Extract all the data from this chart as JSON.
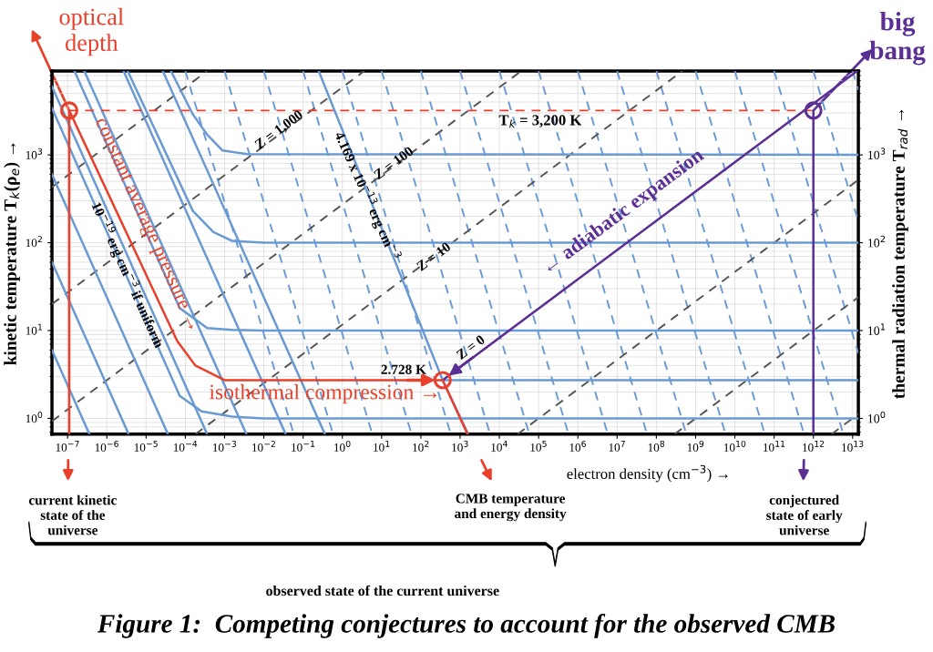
{
  "chart_data": {
    "type": "line",
    "title": "Figure 1:  Competing conjectures to account for the observed CMB",
    "xlabel": "electron density (cm$^{−3}$) →",
    "ylabel": "kinetic temperature T$_{k}$(ρ$_{e}$) →",
    "y2label": "thermal radiation temperature T$_{rad}$ →",
    "log": "xy",
    "grid": true,
    "xlim": [
      4e-08,
      14000000000000.0
    ],
    "ylim": [
      0.66,
      9000
    ],
    "xticks": [
      {
        "value": 1e-07,
        "label": "10$^{−7}$"
      },
      {
        "value": 1e-06,
        "label": "10$^{−6}$"
      },
      {
        "value": 1e-05,
        "label": "10$^{−5}$"
      },
      {
        "value": 0.0001,
        "label": "10$^{−4}$"
      },
      {
        "value": 0.001,
        "label": "10$^{−3}$"
      },
      {
        "value": 0.01,
        "label": "10$^{−2}$"
      },
      {
        "value": 0.1,
        "label": "10$^{−1}$"
      },
      {
        "value": 1,
        "label": "10$^{0}$"
      },
      {
        "value": 10,
        "label": "10$^{1}$"
      },
      {
        "value": 100,
        "label": "10$^{2}$"
      },
      {
        "value": 1000,
        "label": "10$^{3}$"
      },
      {
        "value": 10000.0,
        "label": "10$^{4}$"
      },
      {
        "value": 100000.0,
        "label": "10$^{5}$"
      },
      {
        "value": 1000000.0,
        "label": "10$^{6}$"
      },
      {
        "value": 10000000.0,
        "label": "10$^{7}$"
      },
      {
        "value": 100000000.0,
        "label": "10$^{8}$"
      },
      {
        "value": 1000000000.0,
        "label": "10$^{9}$"
      },
      {
        "value": 10000000000.0,
        "label": "10$^{10}$"
      },
      {
        "value": 100000000000.0,
        "label": "10$^{11}$"
      },
      {
        "value": 1000000000000.0,
        "label": "10$^{12}$"
      },
      {
        "value": 10000000000000.0,
        "label": "10$^{13}$"
      }
    ],
    "yticks": [
      {
        "value": 1,
        "label": "10$^{0}$"
      },
      {
        "value": 10,
        "label": "10$^{1}$"
      },
      {
        "value": 100,
        "label": "10$^{2}$"
      },
      {
        "value": 1000,
        "label": "10$^{3}$"
      }
    ],
    "series": [
      {
        "color": "#6a9ad4",
        "line_style": "dashed",
        "x": [
          0.0001,
          0.058
        ],
        "values": [
          9000,
          0.66
        ]
      },
      {
        "color": "#6a9ad4",
        "line_style": "dashed",
        "x": [
          0.001,
          0.58
        ],
        "values": [
          9000,
          0.66
        ]
      },
      {
        "color": "#6a9ad4",
        "line_style": "dashed",
        "x": [
          0.01,
          5.8
        ],
        "values": [
          9000,
          0.66
        ]
      },
      {
        "color": "#6a9ad4",
        "line_style": "dashed",
        "x": [
          0.1,
          58
        ],
        "values": [
          9000,
          0.66
        ]
      },
      {
        "color": "#6a9ad4",
        "line_style": "dashed",
        "x": [
          1,
          580
        ],
        "values": [
          9000,
          0.66
        ]
      },
      {
        "color": "#6a9ad4",
        "line_style": "dashed",
        "x": [
          10,
          5800
        ],
        "values": [
          9000,
          0.66
        ]
      },
      {
        "color": "#6a9ad4",
        "line_style": "dashed",
        "x": [
          100,
          58000.0
        ],
        "values": [
          9000,
          0.66
        ]
      },
      {
        "color": "#6a9ad4",
        "line_style": "dashed",
        "x": [
          1000,
          580000.0
        ],
        "values": [
          9000,
          0.66
        ]
      },
      {
        "color": "#6a9ad4",
        "line_style": "dashed",
        "x": [
          10000.0,
          5800000.0
        ],
        "values": [
          9000,
          0.66
        ]
      },
      {
        "color": "#6a9ad4",
        "line_style": "dashed",
        "x": [
          100000.0,
          58000000.0
        ],
        "values": [
          9000,
          0.66
        ]
      },
      {
        "color": "#6a9ad4",
        "line_style": "dashed",
        "x": [
          1000000.0,
          580000000.0
        ],
        "values": [
          9000,
          0.66
        ]
      },
      {
        "color": "#6a9ad4",
        "line_style": "dashed",
        "x": [
          10000000.0,
          5800000000.0
        ],
        "values": [
          9000,
          0.66
        ]
      },
      {
        "color": "#6a9ad4",
        "line_style": "dashed",
        "x": [
          100000000.0,
          58000000000.0
        ],
        "values": [
          9000,
          0.66
        ]
      },
      {
        "color": "#6a9ad4",
        "line_style": "dashed",
        "x": [
          1000000000.0,
          580000000000.0
        ],
        "values": [
          9000,
          0.66
        ]
      },
      {
        "color": "#6a9ad4",
        "line_style": "dashed",
        "x": [
          10000000000.0,
          5800000000000.0
        ],
        "values": [
          9000,
          0.66
        ]
      },
      {
        "color": "#6a9ad4",
        "line_style": "dashed",
        "x": [
          100000000000.0,
          14000000000000.0
        ],
        "values": [
          9000,
          5.5
        ]
      },
      {
        "color": "#6a9ad4",
        "line_style": "dashed",
        "x": [
          1000000000000.0,
          14000000000000.0
        ],
        "values": [
          9000,
          175
        ]
      },
      {
        "color": "#6a9ad4",
        "line_style": "dashed",
        "x": [
          10000000000000.0,
          14000000000000.0
        ],
        "values": [
          9000,
          5500
        ]
      },
      {
        "color": "#555555",
        "line_style": "dashed",
        "x": [
          4e-08,
          0.00036
        ],
        "values": [
          430,
          9000
        ]
      },
      {
        "color": "#555555",
        "line_style": "dashed",
        "x": [
          4e-08,
          3.6
        ],
        "values": [
          20,
          9000
        ]
      },
      {
        "color": "#555555",
        "line_style": "dashed",
        "x": [
          4e-08,
          36000.0
        ],
        "values": [
          0.93,
          9000
        ]
      },
      {
        "color": "#555555",
        "line_style": "dashed",
        "x": [
          0.00018,
          460000000.0
        ],
        "values": [
          0.66,
          9000
        ]
      },
      {
        "color": "#555555",
        "line_style": "dashed",
        "x": [
          29000.0,
          14000000000000.0
        ],
        "values": [
          0.66,
          520
        ]
      },
      {
        "color": "#555555",
        "line_style": "dashed",
        "x": [
          290000000.0,
          14000000000000.0
        ],
        "values": [
          0.66,
          24
        ]
      },
      {
        "color": "#555555",
        "line_style": "dashed",
        "x": [
          2900000000000.0,
          14000000000000.0
        ],
        "values": [
          0.66,
          1.12
        ]
      },
      {
        "color": "#6a9ad4",
        "x": [
          4e-08,
          3.6e-07
        ],
        "values": [
          6.0,
          0.66
        ]
      },
      {
        "color": "#6a9ad4",
        "x": [
          4e-08,
          3.6e-06
        ],
        "values": [
          60,
          0.66
        ]
      },
      {
        "color": "#6a9ad4",
        "x": [
          4e-08,
          3.6e-05
        ],
        "values": [
          600,
          0.66
        ]
      },
      {
        "color": "#6a9ad4",
        "x": [
          4e-08,
          0.00036
        ],
        "values": [
          6000,
          0.66
        ]
      },
      {
        "color": "#6a9ad4",
        "x": [
          2.67e-07,
          0.0036
        ],
        "values": [
          9000,
          0.66
        ]
      },
      {
        "color": "#6a9ad4",
        "x": [
          2.67e-06,
          0.036
        ],
        "values": [
          9000,
          0.66
        ]
      },
      {
        "color": "#6a9ad4",
        "x": [
          2.67e-05,
          0.36
        ],
        "values": [
          9000,
          0.66
        ]
      },
      {
        "color": "#6a9ad4",
        "x": [
          0.25,
          360,
          1600
        ],
        "values": [
          9000,
          2.728,
          0.66
        ]
      },
      {
        "color": "#6a9ad4",
        "x": [
          4.3e-05,
          0.000155,
          0.00036,
          0.00089,
          0.0038,
          14000000000000.0
        ],
        "values": [
          9000,
          2900,
          1700,
          1120,
          1020,
          1000
        ]
      },
      {
        "color": "#6a9ad4",
        "x": [
          3.4e-06,
          0.000155,
          0.00052,
          0.00155,
          0.01,
          14000000000000.0
        ],
        "values": [
          9000,
          230,
          132,
          105,
          100,
          100
        ]
      },
      {
        "color": "#6a9ad4",
        "x": [
          1.5e-07,
          7.2e-05,
          0.00036,
          0.00155,
          0.01,
          14000000000000.0
        ],
        "values": [
          9000,
          18,
          10.7,
          10.2,
          10,
          10
        ]
      },
      {
        "color": "#6a9ad4",
        "x": [
          360,
          14000000000000.0
        ],
        "values": [
          2.728,
          2.728
        ]
      },
      {
        "color": "#6a9ad4",
        "x": [
          4e-08,
          7.2e-05,
          0.00026,
          0.00155,
          0.01,
          14000000000000.0
        ],
        "values": [
          3400,
          1.8,
          1.2,
          1.05,
          1,
          1
        ]
      },
      {
        "color": "#e8402a",
        "x": [
          1.1e-07,
          6.2e-05,
          0.00018,
          0.00076,
          0.001,
          360
        ],
        "values": [
          3200,
          7.6,
          4.0,
          2.9,
          2.728,
          2.728
        ]
      },
      {
        "color": "#e8402a",
        "line_style": "dashed",
        "x": [
          1.1e-07,
          1000000000000.0
        ],
        "values": [
          3200,
          3200
        ]
      },
      {
        "color": "#5b2f94",
        "x": [
          360,
          13000000000000.0
        ],
        "values": [
          2.728,
          9000
        ]
      },
      {
        "color": "#e8402a",
        "x": [
          1.1e-07,
          1.1e-07
        ],
        "values": [
          3200,
          0.66
        ]
      },
      {
        "color": "#e8402a",
        "x": [
          360,
          1550
        ],
        "values": [
          2.728,
          0.66
        ]
      },
      {
        "color": "#5b2f94",
        "x": [
          1000000000000.0,
          1000000000000.0
        ],
        "values": [
          3200,
          0.66
        ]
      },
      {
        "type": "scatter",
        "marker": "circle",
        "color": "#e8402a",
        "x": [
          1.1e-07
        ],
        "values": [
          3200
        ]
      },
      {
        "type": "scatter",
        "marker": "circle",
        "color": "#e8402a",
        "x": [
          360
        ],
        "values": [
          2.728
        ]
      },
      {
        "type": "scatter",
        "marker": "circle",
        "color": "#5b2f94",
        "x": [
          1000000000000.0
        ],
        "values": [
          3200
        ]
      }
    ],
    "annotations": [
      "optical\ndepth",
      "big\nbang",
      "constant average pressure →",
      {
        "text": "isothermal compression →",
        "x": 0.36,
        "y": 1.9
      },
      {
        "text": "← adiabatic expansion",
        "x": 14000000.0,
        "y": 220
      },
      {
        "text": "Z = 1,000",
        "x": 0.025,
        "y": 1900
      },
      {
        "text": "Z = 100",
        "x": 21,
        "y": 790
      },
      {
        "text": "Z = 10",
        "x": 220,
        "y": 68
      },
      "Z = 0",
      "10$^{−19}$ erg cm$^{−3}$ if uniform",
      {
        "text": "4.169 x 10$^{−13}$ erg cm$^{−3}$",
        "x": 4.3,
        "y": 340
      },
      "T$_{k}$ = 3,200 K",
      "2.728 K",
      "current kinetic\nstate of the\nuniverse",
      "CMB temperature\nand energy density",
      "conjectured\nstate of early\nuniverse",
      "observed state of the current universe"
    ]
  }
}
